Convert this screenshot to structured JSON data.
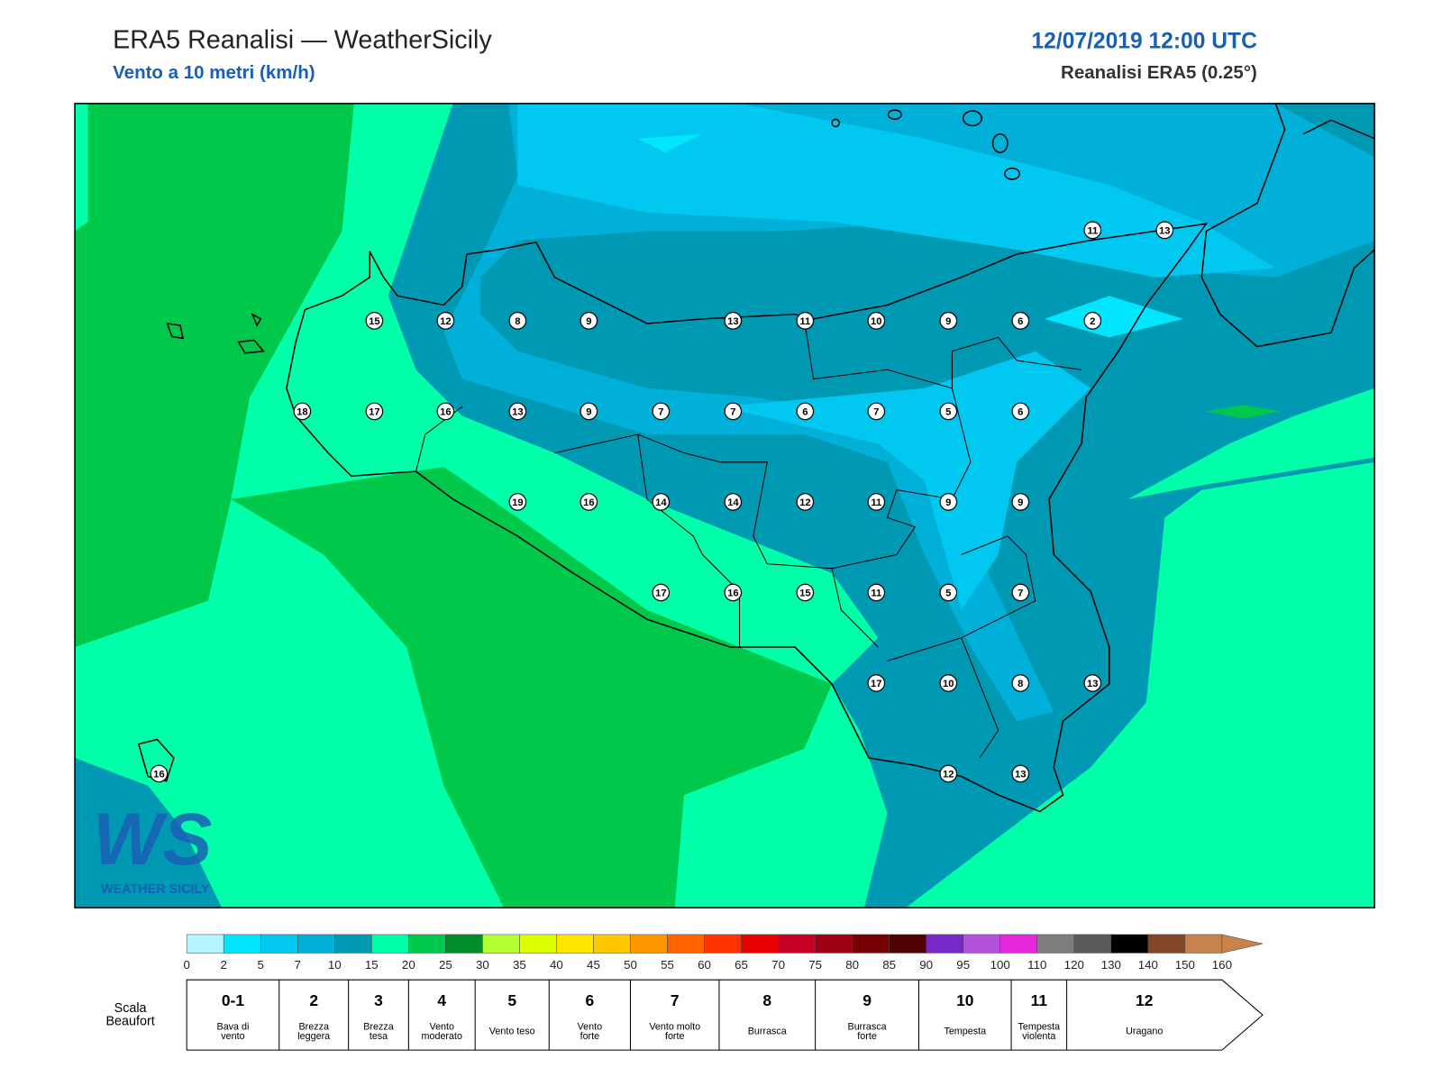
{
  "header": {
    "title": "ERA5 Reanalisi — WeatherSicily",
    "subtitle": "Vento a 10 metri (km/h)",
    "date": "12/07/2019 12:00 UTC",
    "source": "Reanalisi ERA5 (0.25°)"
  },
  "stations": [
    11,
    13,
    15,
    12,
    8,
    9,
    13,
    11,
    10,
    9,
    6,
    2,
    18,
    17,
    16,
    13,
    9,
    7,
    7,
    6,
    7,
    5,
    6,
    19,
    16,
    14,
    14,
    12,
    11,
    9,
    9,
    17,
    16,
    15,
    11,
    5,
    7,
    17,
    10,
    8,
    13,
    12,
    13,
    16
  ],
  "logo": {
    "text": "WS",
    "caption": "WEATHER SICILY"
  },
  "colorbar": {
    "ticks": [
      0,
      2,
      5,
      7,
      10,
      15,
      20,
      25,
      30,
      35,
      40,
      45,
      50,
      55,
      60,
      65,
      70,
      75,
      80,
      85,
      90,
      95,
      100,
      110,
      120,
      130,
      140,
      150,
      160
    ],
    "colors": [
      "#b4f5ff",
      "#00e6ff",
      "#00c8f0",
      "#00b0d8",
      "#0099b4",
      "#00ffa8",
      "#00c84a",
      "#008c28",
      "#b4ff32",
      "#dcff00",
      "#ffe600",
      "#ffc800",
      "#ff9600",
      "#ff6400",
      "#ff3200",
      "#e60000",
      "#c80028",
      "#a00014",
      "#780000",
      "#500000",
      "#7828c8",
      "#b450dc",
      "#e628dc",
      "#7d7d7d",
      "#5a5a5a",
      "#000000",
      "#824628",
      "#c8824b"
    ]
  },
  "beaufort": {
    "label": [
      "Scala",
      "Beaufort"
    ],
    "entries": [
      {
        "force": "0-1",
        "description": [
          "Bava di",
          "vento"
        ]
      },
      {
        "force": "2",
        "description": [
          "Brezza",
          "leggera"
        ]
      },
      {
        "force": "3",
        "description": [
          "Brezza",
          "tesa"
        ]
      },
      {
        "force": "4",
        "description": [
          "Vento",
          "moderato"
        ]
      },
      {
        "force": "5",
        "description": [
          "Vento teso"
        ]
      },
      {
        "force": "6",
        "description": [
          "Vento",
          "forte"
        ]
      },
      {
        "force": "7",
        "description": [
          "Vento molto",
          "forte"
        ]
      },
      {
        "force": "8",
        "description": [
          "Burrasca"
        ]
      },
      {
        "force": "9",
        "description": [
          "Burrasca",
          "forte"
        ]
      },
      {
        "force": "10",
        "description": [
          "Tempesta"
        ]
      },
      {
        "force": "11",
        "description": [
          "Tempesta",
          "violenta"
        ]
      },
      {
        "force": "12",
        "description": [
          "Uragano"
        ]
      }
    ]
  }
}
